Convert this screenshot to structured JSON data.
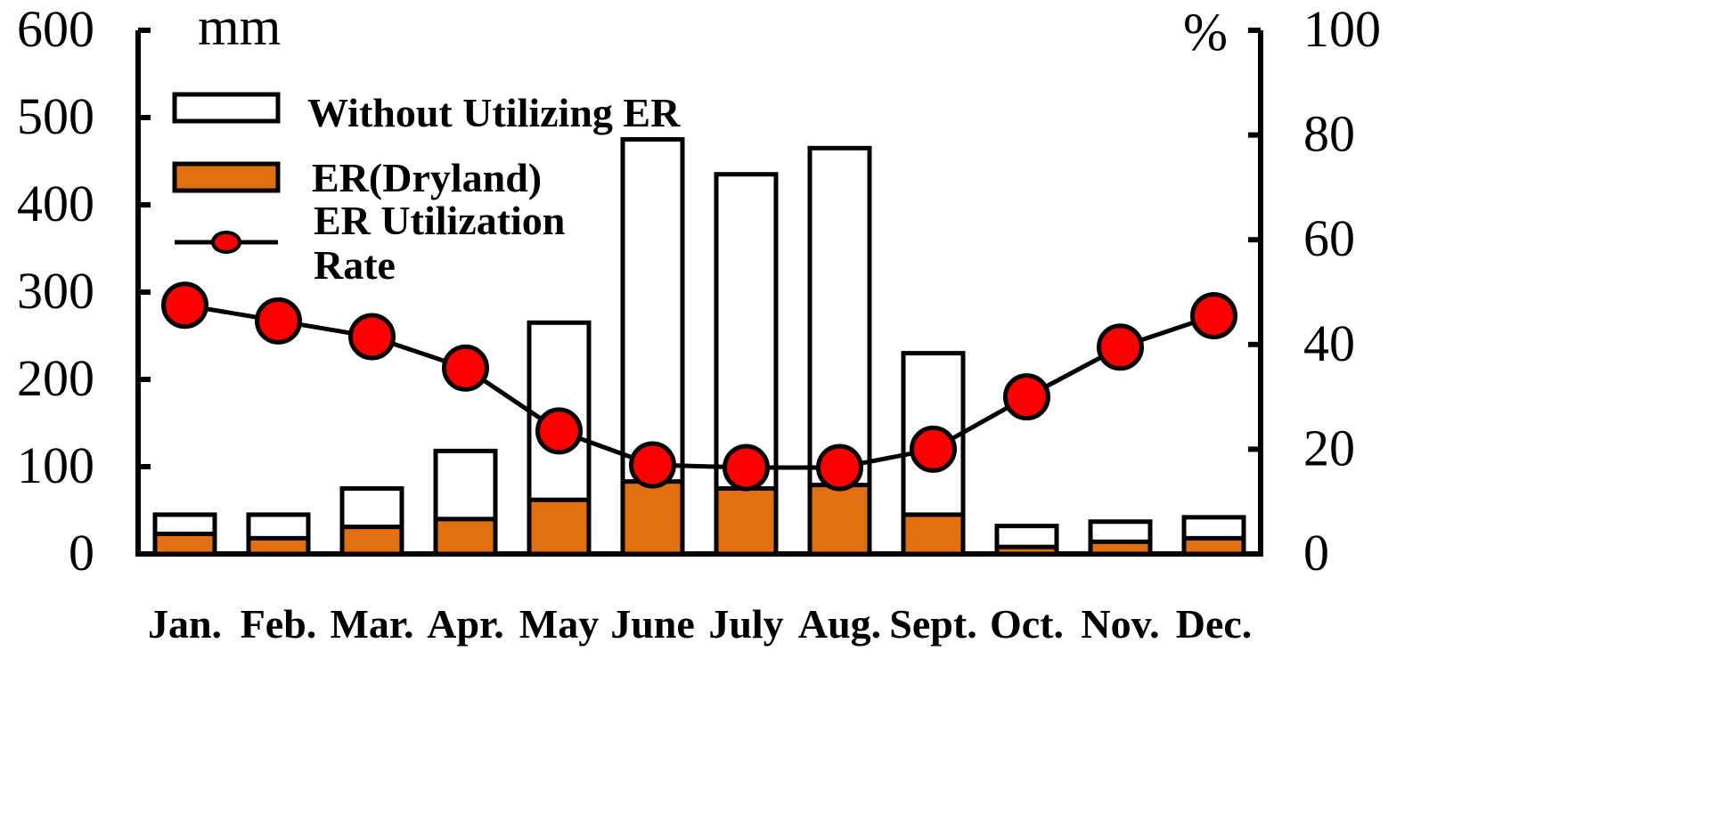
{
  "chart_data": {
    "type": "bar",
    "categories": [
      "Jan.",
      "Feb.",
      "Mar.",
      "Apr.",
      "May",
      "June",
      "July",
      "Aug.",
      "Sept.",
      "Oct.",
      "Nov.",
      "Dec."
    ],
    "left_axis": {
      "unit": "mm",
      "ylim": [
        0,
        600
      ],
      "ticks": [
        "0",
        "100",
        "200",
        "300",
        "400",
        "500",
        "600"
      ]
    },
    "right_axis": {
      "unit": "%",
      "ylim": [
        0,
        100
      ],
      "ticks": [
        "0",
        "20",
        "40",
        "60",
        "80",
        "100"
      ]
    },
    "series": [
      {
        "name": "Without Utilizing ER",
        "kind": "bar",
        "axis": "left",
        "color": "#ffffff",
        "values": [
          45,
          45,
          75,
          118,
          265,
          475,
          435,
          465,
          230,
          32,
          37,
          42
        ]
      },
      {
        "name": "ER(Dryland)",
        "kind": "bar",
        "axis": "left",
        "color": "#e07010",
        "values": [
          23,
          18,
          31,
          40,
          62,
          83,
          75,
          79,
          45,
          8,
          14,
          18
        ]
      },
      {
        "name_lines": [
          "ER Utilization",
          "Rate"
        ],
        "kind": "line",
        "axis": "right",
        "color": "#ff0000",
        "values": [
          47.5,
          44.5,
          41.5,
          35.5,
          23.5,
          17,
          16.5,
          16.5,
          20,
          30,
          39.5,
          45.5
        ]
      }
    ],
    "grid": false,
    "legend": "top-left"
  }
}
